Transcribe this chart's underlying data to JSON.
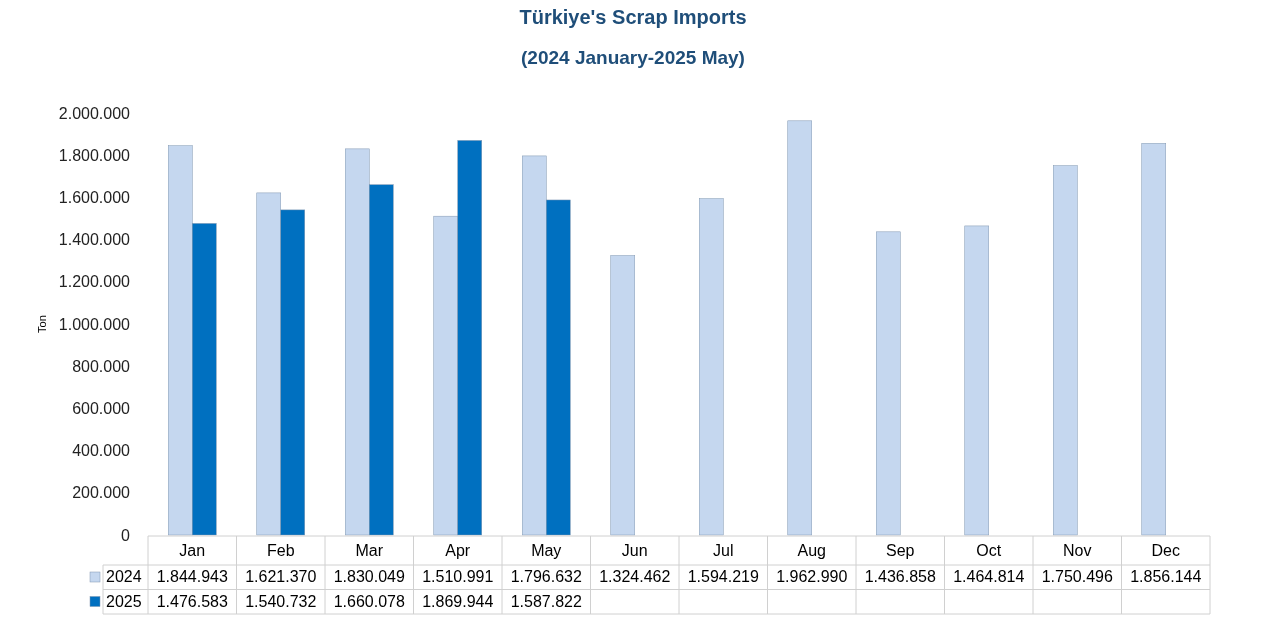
{
  "chart_data": {
    "type": "bar",
    "title": "Türkiye's Scrap Imports",
    "subtitle": "(2024 January-2025 May)",
    "ylabel": "Ton",
    "categories": [
      "Jan",
      "Feb",
      "Mar",
      "Apr",
      "May",
      "Jun",
      "Jul",
      "Aug",
      "Sep",
      "Oct",
      "Nov",
      "Dec"
    ],
    "series": [
      {
        "name": "2024",
        "color": "#c5d7ef",
        "values": [
          1844943,
          1621370,
          1830049,
          1510991,
          1796632,
          1324462,
          1594219,
          1962990,
          1436858,
          1464814,
          1750496,
          1856144
        ],
        "value_labels": [
          "1.844.943",
          "1.621.370",
          "1.830.049",
          "1.510.991",
          "1.796.632",
          "1.324.462",
          "1.594.219",
          "1.962.990",
          "1.436.858",
          "1.464.814",
          "1.750.496",
          "1.856.144"
        ]
      },
      {
        "name": "2025",
        "color": "#0070c0",
        "values": [
          1476583,
          1540732,
          1660078,
          1869944,
          1587822,
          null,
          null,
          null,
          null,
          null,
          null,
          null
        ],
        "value_labels": [
          "1.476.583",
          "1.540.732",
          "1.660.078",
          "1.869.944",
          "1.587.822",
          null,
          null,
          null,
          null,
          null,
          null,
          null
        ]
      }
    ],
    "ylim": [
      0,
      2000000
    ],
    "yticks": [
      0,
      {
        "value": 200000,
        "label": "200.000"
      },
      {
        "value": 400000,
        "label": "400.000"
      },
      {
        "value": 600000,
        "label": "600.000"
      },
      {
        "value": 800000,
        "label": "800.000"
      },
      {
        "value": 1000000,
        "label": "1.000.000"
      },
      {
        "value": 1200000,
        "label": "1.200.000"
      },
      {
        "value": 1400000,
        "label": "1.400.000"
      },
      {
        "value": 1600000,
        "label": "1.600.000"
      },
      {
        "value": 1800000,
        "label": "1.800.000"
      },
      {
        "value": 2000000,
        "label": "2.000.000"
      }
    ],
    "grid": false,
    "legend": "bottom left"
  }
}
